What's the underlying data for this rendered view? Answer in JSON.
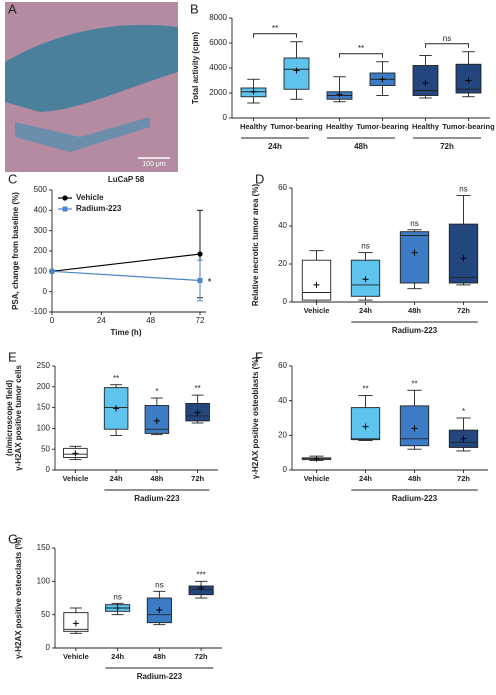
{
  "chart_data": [
    {
      "type": "image",
      "panel": "A",
      "scale_bar": "100 µm"
    },
    {
      "type": "box",
      "panel": "B",
      "ylabel": "Total activity (cpm)",
      "categories": [
        "Healthy",
        "Tumor-bearing",
        "Healthy",
        "Tumor-bearing",
        "Healthy",
        "Tumor-bearing"
      ],
      "groups": [
        "24h",
        "48h",
        "72h"
      ],
      "colors": [
        "#5ec4ee",
        "#5ec4ee",
        "#3d7cc5",
        "#3d7cc5",
        "#24467f",
        "#24467f"
      ],
      "boxes": [
        {
          "min": 1200,
          "q1": 1700,
          "median": 2100,
          "q3": 2400,
          "max": 3100,
          "mean": 2100
        },
        {
          "min": 1500,
          "q1": 2300,
          "median": 3900,
          "q3": 4800,
          "max": 6100,
          "mean": 3800
        },
        {
          "min": 1300,
          "q1": 1500,
          "median": 1800,
          "q3": 2100,
          "max": 3300,
          "mean": 1900
        },
        {
          "min": 1800,
          "q1": 2600,
          "median": 3100,
          "q3": 3600,
          "max": 4500,
          "mean": 3100
        },
        {
          "min": 1600,
          "q1": 1800,
          "median": 2200,
          "q3": 4200,
          "max": 5000,
          "mean": 2800
        },
        {
          "min": 1700,
          "q1": 2000,
          "median": 2300,
          "q3": 4300,
          "max": 5300,
          "mean": 3000
        }
      ],
      "significance": [
        "**",
        "**",
        "ns"
      ],
      "ylim": [
        0,
        8000
      ],
      "yticks": [
        0,
        2000,
        4000,
        6000,
        8000
      ]
    },
    {
      "type": "line",
      "panel": "C",
      "title": "LuCaP 58",
      "xlabel": "Time (h)",
      "ylabel": "PSA, change from baseline (%)",
      "x": [
        0,
        72
      ],
      "series": [
        {
          "name": "Vehicle",
          "color": "#000000",
          "marker": "circle",
          "values": [
            100,
            185
          ],
          "errors": [
            null,
            215
          ]
        },
        {
          "name": "Radium-223",
          "color": "#4a86c8",
          "marker": "square",
          "values": [
            100,
            55
          ],
          "errors": [
            null,
            100
          ]
        }
      ],
      "annotation": "*",
      "xlim": [
        0,
        72
      ],
      "xticks": [
        0,
        24,
        48,
        72
      ],
      "ylim": [
        -100,
        500
      ],
      "yticks": [
        -100,
        0,
        100,
        200,
        300,
        400,
        500
      ],
      "legend": "upper left"
    },
    {
      "type": "box",
      "panel": "D",
      "ylabel": "Relative necrotic tumor area (%)",
      "categories": [
        "Vehicle",
        "24h",
        "48h",
        "72h"
      ],
      "group_label": "Radium-223",
      "colors": [
        "#ffffff",
        "#5ec4ee",
        "#3d7cc5",
        "#24467f"
      ],
      "boxes": [
        {
          "min": 0,
          "q1": 1,
          "median": 5,
          "q3": 22,
          "max": 27,
          "mean": 9
        },
        {
          "min": 1,
          "q1": 3,
          "median": 9,
          "q3": 22,
          "max": 26,
          "mean": 12
        },
        {
          "min": 7,
          "q1": 10,
          "median": 35,
          "q3": 37,
          "max": 38,
          "mean": 26
        },
        {
          "min": 9,
          "q1": 10,
          "median": 13,
          "q3": 41,
          "max": 56,
          "mean": 23
        }
      ],
      "significance": [
        "ns",
        "ns",
        "ns"
      ],
      "ylim": [
        0,
        60
      ],
      "yticks": [
        0,
        20,
        40,
        60
      ]
    },
    {
      "type": "box",
      "panel": "E",
      "ylabel": [
        "γ-H2AX positive tumor cells",
        "(n/microscope field)"
      ],
      "categories": [
        "Vehicle",
        "24h",
        "48h",
        "72h"
      ],
      "group_label": "Radium-223",
      "colors": [
        "#ffffff",
        "#5ec4ee",
        "#3d7cc5",
        "#24467f"
      ],
      "boxes": [
        {
          "min": 25,
          "q1": 30,
          "median": 38,
          "q3": 52,
          "max": 57,
          "mean": 40
        },
        {
          "min": 83,
          "q1": 98,
          "median": 150,
          "q3": 198,
          "max": 205,
          "mean": 148
        },
        {
          "min": 85,
          "q1": 88,
          "median": 98,
          "q3": 155,
          "max": 173,
          "mean": 118
        },
        {
          "min": 113,
          "q1": 118,
          "median": 130,
          "q3": 160,
          "max": 180,
          "mean": 138
        }
      ],
      "significance": [
        "**",
        "*",
        "**"
      ],
      "ylim": [
        0,
        250
      ],
      "yticks": [
        0,
        50,
        100,
        150,
        200,
        250
      ]
    },
    {
      "type": "box",
      "panel": "F",
      "ylabel": "γ-H2AX positive osteoblasts (%)",
      "categories": [
        "Vehicle",
        "24h",
        "48h",
        "72h"
      ],
      "group_label": "Radium-223",
      "colors": [
        "#ffffff",
        "#5ec4ee",
        "#3d7cc5",
        "#24467f"
      ],
      "boxes": [
        {
          "min": 5.5,
          "q1": 6,
          "median": 6.5,
          "q3": 7,
          "max": 8,
          "mean": 6.5
        },
        {
          "min": 17,
          "q1": 17.5,
          "median": 18,
          "q3": 36,
          "max": 43,
          "mean": 25
        },
        {
          "min": 12,
          "q1": 14,
          "median": 18,
          "q3": 37,
          "max": 46,
          "mean": 24
        },
        {
          "min": 11,
          "q1": 13,
          "median": 16,
          "q3": 23,
          "max": 30,
          "mean": 18
        }
      ],
      "significance": [
        "**",
        "**",
        "*"
      ],
      "ylim": [
        0,
        60
      ],
      "yticks": [
        0,
        20,
        40,
        60
      ]
    },
    {
      "type": "box",
      "panel": "G",
      "ylabel": "γ-H2AX positive osteoclasts (%)",
      "categories": [
        "Vehicle",
        "24h",
        "48h",
        "72h"
      ],
      "group_label": "Radium-223",
      "colors": [
        "#ffffff",
        "#5ec4ee",
        "#3d7cc5",
        "#24467f"
      ],
      "boxes": [
        {
          "min": 22,
          "q1": 25,
          "median": 28,
          "q3": 53,
          "max": 60,
          "mean": 37
        },
        {
          "min": 50,
          "q1": 55,
          "median": 60,
          "q3": 65,
          "max": 67,
          "mean": 60
        },
        {
          "min": 35,
          "q1": 38,
          "median": 50,
          "q3": 75,
          "max": 85,
          "mean": 57
        },
        {
          "min": 75,
          "q1": 80,
          "median": 88,
          "q3": 93,
          "max": 100,
          "mean": 90
        }
      ],
      "significance": [
        "ns",
        "ns",
        "***"
      ],
      "ylim": [
        0,
        150
      ],
      "yticks": [
        0,
        50,
        100,
        150
      ]
    }
  ]
}
